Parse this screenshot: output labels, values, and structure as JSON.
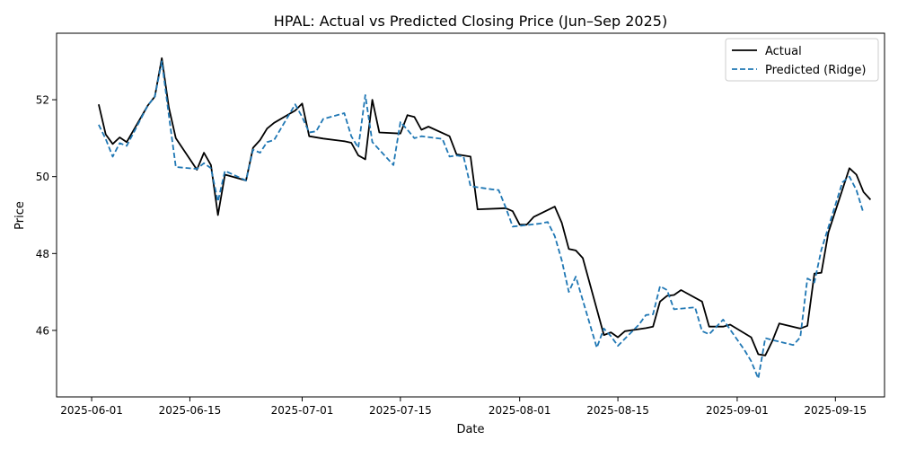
{
  "chart_data": {
    "type": "line",
    "title": "HPAL: Actual vs Predicted Closing Price (Jun–Sep 2025)",
    "xlabel": "Date",
    "ylabel": "Price",
    "xlim": [
      "2025-05-27",
      "2025-09-22"
    ],
    "ylim": [
      44.27,
      53.73
    ],
    "x_ticks": [
      "2025-06-01",
      "2025-06-15",
      "2025-07-01",
      "2025-07-15",
      "2025-08-01",
      "2025-08-15",
      "2025-09-01",
      "2025-09-15"
    ],
    "y_ticks": [
      46,
      48,
      50,
      52
    ],
    "grid": false,
    "legend_position": "top-right",
    "series": [
      {
        "name": "Actual",
        "color": "#000000",
        "dash": "solid",
        "points": [
          [
            "2025-06-02",
            51.88
          ],
          [
            "2025-06-03",
            51.1
          ],
          [
            "2025-06-04",
            50.85
          ],
          [
            "2025-06-05",
            51.02
          ],
          [
            "2025-06-06",
            50.9
          ],
          [
            "2025-06-09",
            51.85
          ],
          [
            "2025-06-10",
            52.08
          ],
          [
            "2025-06-11",
            53.08
          ],
          [
            "2025-06-12",
            51.8
          ],
          [
            "2025-06-13",
            51.0
          ],
          [
            "2025-06-16",
            50.18
          ],
          [
            "2025-06-17",
            50.62
          ],
          [
            "2025-06-18",
            50.3
          ],
          [
            "2025-06-19",
            49.0
          ],
          [
            "2025-06-20",
            50.05
          ],
          [
            "2025-06-23",
            49.9
          ],
          [
            "2025-06-24",
            50.75
          ],
          [
            "2025-06-25",
            50.95
          ],
          [
            "2025-06-26",
            51.25
          ],
          [
            "2025-06-27",
            51.4
          ],
          [
            "2025-06-30",
            51.72
          ],
          [
            "2025-07-01",
            51.9
          ],
          [
            "2025-07-02",
            51.05
          ],
          [
            "2025-07-04",
            50.99
          ],
          [
            "2025-07-07",
            50.92
          ],
          [
            "2025-07-08",
            50.88
          ],
          [
            "2025-07-09",
            50.55
          ],
          [
            "2025-07-10",
            50.45
          ],
          [
            "2025-07-11",
            52.0
          ],
          [
            "2025-07-12",
            51.15
          ],
          [
            "2025-07-15",
            51.12
          ],
          [
            "2025-07-16",
            51.6
          ],
          [
            "2025-07-17",
            51.55
          ],
          [
            "2025-07-18",
            51.22
          ],
          [
            "2025-07-19",
            51.3
          ],
          [
            "2025-07-22",
            51.05
          ],
          [
            "2025-07-23",
            50.58
          ],
          [
            "2025-07-24",
            50.55
          ],
          [
            "2025-07-25",
            50.52
          ],
          [
            "2025-07-26",
            49.15
          ],
          [
            "2025-07-29",
            49.17
          ],
          [
            "2025-07-30",
            49.18
          ],
          [
            "2025-07-31",
            49.1
          ],
          [
            "2025-08-01",
            48.75
          ],
          [
            "2025-08-02",
            48.75
          ],
          [
            "2025-08-03",
            48.95
          ],
          [
            "2025-08-06",
            49.22
          ],
          [
            "2025-08-07",
            48.8
          ],
          [
            "2025-08-08",
            48.12
          ],
          [
            "2025-08-09",
            48.08
          ],
          [
            "2025-08-10",
            47.88
          ],
          [
            "2025-08-13",
            45.88
          ],
          [
            "2025-08-14",
            45.95
          ],
          [
            "2025-08-15",
            45.82
          ],
          [
            "2025-08-16",
            45.98
          ],
          [
            "2025-08-19",
            46.06
          ],
          [
            "2025-08-20",
            46.1
          ],
          [
            "2025-08-21",
            46.75
          ],
          [
            "2025-08-22",
            46.9
          ],
          [
            "2025-08-23",
            46.92
          ],
          [
            "2025-08-24",
            47.05
          ],
          [
            "2025-08-27",
            46.75
          ],
          [
            "2025-08-28",
            46.1
          ],
          [
            "2025-08-30",
            46.1
          ],
          [
            "2025-08-31",
            46.15
          ],
          [
            "2025-09-03",
            45.82
          ],
          [
            "2025-09-04",
            45.38
          ],
          [
            "2025-09-05",
            45.35
          ],
          [
            "2025-09-06",
            45.72
          ],
          [
            "2025-09-07",
            46.18
          ],
          [
            "2025-09-10",
            46.05
          ],
          [
            "2025-09-11",
            46.12
          ],
          [
            "2025-09-12",
            47.48
          ],
          [
            "2025-09-13",
            47.5
          ],
          [
            "2025-09-14",
            48.55
          ],
          [
            "2025-09-17",
            50.22
          ],
          [
            "2025-09-18",
            50.05
          ],
          [
            "2025-09-19",
            49.6
          ],
          [
            "2025-09-20",
            49.4
          ]
        ]
      },
      {
        "name": "Predicted (Ridge)",
        "color": "#1f77b4",
        "dash": "dashed",
        "points": [
          [
            "2025-06-02",
            51.35
          ],
          [
            "2025-06-03",
            50.98
          ],
          [
            "2025-06-04",
            50.52
          ],
          [
            "2025-06-05",
            50.87
          ],
          [
            "2025-06-06",
            50.8
          ],
          [
            "2025-06-09",
            51.85
          ],
          [
            "2025-06-10",
            52.08
          ],
          [
            "2025-06-11",
            53.0
          ],
          [
            "2025-06-12",
            51.6
          ],
          [
            "2025-06-13",
            50.25
          ],
          [
            "2025-06-16",
            50.2
          ],
          [
            "2025-06-17",
            50.35
          ],
          [
            "2025-06-18",
            50.22
          ],
          [
            "2025-06-19",
            49.35
          ],
          [
            "2025-06-20",
            50.15
          ],
          [
            "2025-06-23",
            49.9
          ],
          [
            "2025-06-24",
            50.7
          ],
          [
            "2025-06-25",
            50.62
          ],
          [
            "2025-06-26",
            50.9
          ],
          [
            "2025-06-27",
            50.95
          ],
          [
            "2025-06-30",
            51.88
          ],
          [
            "2025-07-01",
            51.55
          ],
          [
            "2025-07-02",
            51.15
          ],
          [
            "2025-07-03",
            51.18
          ],
          [
            "2025-07-04",
            51.5
          ],
          [
            "2025-07-07",
            51.65
          ],
          [
            "2025-07-08",
            51.05
          ],
          [
            "2025-07-09",
            50.75
          ],
          [
            "2025-07-10",
            52.12
          ],
          [
            "2025-07-11",
            50.9
          ],
          [
            "2025-07-14",
            50.3
          ],
          [
            "2025-07-15",
            51.42
          ],
          [
            "2025-07-16",
            51.22
          ],
          [
            "2025-07-17",
            51.0
          ],
          [
            "2025-07-18",
            51.05
          ],
          [
            "2025-07-21",
            50.98
          ],
          [
            "2025-07-22",
            50.52
          ],
          [
            "2025-07-23",
            50.55
          ],
          [
            "2025-07-24",
            50.52
          ],
          [
            "2025-07-25",
            49.75
          ],
          [
            "2025-07-28",
            49.67
          ],
          [
            "2025-07-29",
            49.65
          ],
          [
            "2025-07-30",
            49.2
          ],
          [
            "2025-07-31",
            48.7
          ],
          [
            "2025-08-01",
            48.72
          ],
          [
            "2025-08-04",
            48.78
          ],
          [
            "2025-08-05",
            48.82
          ],
          [
            "2025-08-06",
            48.45
          ],
          [
            "2025-08-07",
            47.82
          ],
          [
            "2025-08-08",
            47.0
          ],
          [
            "2025-08-09",
            47.4
          ],
          [
            "2025-08-12",
            45.55
          ],
          [
            "2025-08-13",
            46.05
          ],
          [
            "2025-08-14",
            45.85
          ],
          [
            "2025-08-15",
            45.6
          ],
          [
            "2025-08-18",
            46.15
          ],
          [
            "2025-08-19",
            46.4
          ],
          [
            "2025-08-20",
            46.42
          ],
          [
            "2025-08-21",
            47.15
          ],
          [
            "2025-08-22",
            47.05
          ],
          [
            "2025-08-23",
            46.55
          ],
          [
            "2025-08-26",
            46.6
          ],
          [
            "2025-08-27",
            45.98
          ],
          [
            "2025-08-28",
            45.9
          ],
          [
            "2025-08-30",
            46.28
          ],
          [
            "2025-09-02",
            45.5
          ],
          [
            "2025-09-03",
            45.2
          ],
          [
            "2025-09-04",
            44.75
          ],
          [
            "2025-09-05",
            45.8
          ],
          [
            "2025-09-06",
            45.75
          ],
          [
            "2025-09-09",
            45.62
          ],
          [
            "2025-09-10",
            45.82
          ],
          [
            "2025-09-11",
            47.35
          ],
          [
            "2025-09-12",
            47.25
          ],
          [
            "2025-09-13",
            48.1
          ],
          [
            "2025-09-16",
            49.85
          ],
          [
            "2025-09-17",
            50.0
          ],
          [
            "2025-09-18",
            49.65
          ],
          [
            "2025-09-19",
            49.05
          ]
        ]
      }
    ]
  }
}
